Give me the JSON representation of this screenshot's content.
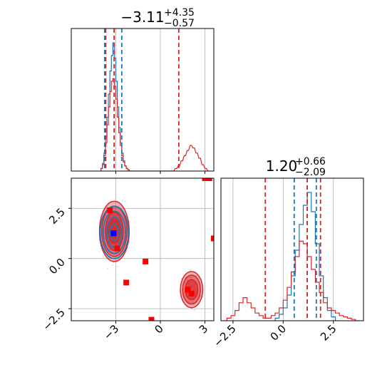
{
  "chart_data": {
    "type": "corner",
    "colors": {
      "blue": "#1f77b4",
      "red": "#d62728",
      "pure_red": "#ff0000",
      "pure_blue": "#0000ff"
    },
    "grid": true,
    "x_param": {
      "title_median": "−3.11",
      "title_plus": "+4.35",
      "title_minus": "−0.57",
      "range": [
        -6.0,
        3.6
      ],
      "ticks": [
        -3,
        0,
        3
      ],
      "tick_labels": [
        "−3",
        "0",
        "3"
      ],
      "quantiles_blue": [
        -3.75,
        -3.11,
        -2.6
      ],
      "quantiles_red": [
        -3.68,
        -3.11,
        1.24
      ]
    },
    "y_param": {
      "title_median": "1.20",
      "title_plus": "+0.66",
      "title_minus": "−2.09",
      "range": [
        -3.1,
        4.0
      ],
      "ticks": [
        -2.5,
        0.0,
        2.5
      ],
      "tick_labels": [
        "−2.5",
        "0.0",
        "2.5"
      ],
      "quantiles_blue": [
        0.55,
        1.2,
        1.65
      ],
      "quantiles_red": [
        -0.89,
        1.2,
        1.86
      ]
    },
    "hist_x_blue": {
      "bins": [
        -4.0,
        -3.9,
        -3.8,
        -3.7,
        -3.6,
        -3.5,
        -3.4,
        -3.3,
        -3.2,
        -3.1,
        -3.0,
        -2.9,
        -2.8,
        -2.7,
        -2.6,
        -2.5,
        -2.4,
        -2.3,
        -2.2,
        -2.1
      ],
      "counts": [
        0.02,
        0.06,
        0.14,
        0.26,
        0.42,
        0.6,
        0.78,
        0.9,
        1.0,
        0.88,
        0.7,
        0.5,
        0.34,
        0.22,
        0.14,
        0.08,
        0.04,
        0.02,
        0.01,
        0.0
      ]
    },
    "hist_x_red": {
      "bins": [
        -4.0,
        -3.9,
        -3.8,
        -3.7,
        -3.6,
        -3.5,
        -3.4,
        -3.3,
        -3.2,
        -3.1,
        -3.0,
        -2.9,
        -2.8,
        -2.7,
        -2.6,
        -2.5,
        -2.4,
        -2.3,
        -2.2,
        -2.1,
        0.8,
        1.0,
        1.2,
        1.4,
        1.6,
        1.8,
        2.0,
        2.2,
        2.4,
        2.6,
        2.8,
        3.0,
        3.2
      ],
      "counts": [
        0.02,
        0.05,
        0.12,
        0.22,
        0.36,
        0.5,
        0.62,
        0.7,
        0.72,
        0.66,
        0.56,
        0.42,
        0.3,
        0.2,
        0.12,
        0.07,
        0.04,
        0.02,
        0.01,
        0.0,
        0.0,
        0.02,
        0.04,
        0.08,
        0.12,
        0.16,
        0.2,
        0.18,
        0.14,
        0.1,
        0.05,
        0.02,
        0.0
      ]
    },
    "hist_y_blue": {
      "bins": [
        -0.4,
        -0.2,
        0.0,
        0.2,
        0.4,
        0.6,
        0.8,
        1.0,
        1.2,
        1.4,
        1.6,
        1.8,
        2.0,
        2.2,
        2.4,
        2.6
      ],
      "counts": [
        0.02,
        0.05,
        0.1,
        0.2,
        0.35,
        0.55,
        0.75,
        0.9,
        1.0,
        0.85,
        0.6,
        0.35,
        0.18,
        0.08,
        0.03,
        0.0
      ]
    },
    "hist_y_red": {
      "bins": [
        -3.0,
        -2.8,
        -2.6,
        -2.4,
        -2.2,
        -2.0,
        -1.8,
        -1.6,
        -1.4,
        -1.2,
        -1.0,
        -0.8,
        -0.6,
        -0.4,
        -0.2,
        0.0,
        0.2,
        0.4,
        0.6,
        0.8,
        1.0,
        1.2,
        1.4,
        1.6,
        1.8,
        2.0,
        2.2,
        2.4,
        2.6,
        2.8,
        3.0,
        3.2,
        3.4,
        3.6
      ],
      "counts": [
        0.0,
        0.02,
        0.04,
        0.08,
        0.14,
        0.18,
        0.14,
        0.1,
        0.06,
        0.04,
        0.02,
        0.02,
        0.04,
        0.06,
        0.1,
        0.16,
        0.26,
        0.38,
        0.5,
        0.62,
        0.6,
        0.5,
        0.4,
        0.3,
        0.22,
        0.14,
        0.1,
        0.08,
        0.06,
        0.04,
        0.03,
        0.02,
        0.01,
        0.0
      ]
    },
    "contours_red": [
      {
        "cx": -3.1,
        "cy": 1.35,
        "rx": [
          1.0,
          0.85,
          0.6,
          0.4
        ],
        "ry": [
          1.5,
          1.25,
          0.95,
          0.6
        ]
      },
      {
        "cx": 2.1,
        "cy": -1.55,
        "rx": [
          0.75,
          0.6,
          0.42
        ],
        "ry": [
          0.9,
          0.72,
          0.5
        ]
      }
    ],
    "contours_blue": [
      {
        "cx": -3.1,
        "cy": 1.3,
        "rx": [
          0.95,
          0.75,
          0.5,
          0.28
        ],
        "ry": [
          1.3,
          1.05,
          0.75,
          0.4
        ]
      }
    ],
    "red_squares": [
      [
        -3.4,
        2.4
      ],
      [
        -2.9,
        0.5
      ],
      [
        -1.0,
        -0.15
      ],
      [
        -2.3,
        -1.2
      ],
      [
        -0.6,
        -3.05
      ],
      [
        1.85,
        -1.55
      ],
      [
        2.1,
        -1.75
      ],
      [
        3.0,
        4.0
      ],
      [
        3.3,
        4.0
      ],
      [
        3.6,
        1.0
      ]
    ],
    "blue_squares": [
      [
        -3.15,
        1.25
      ]
    ]
  }
}
